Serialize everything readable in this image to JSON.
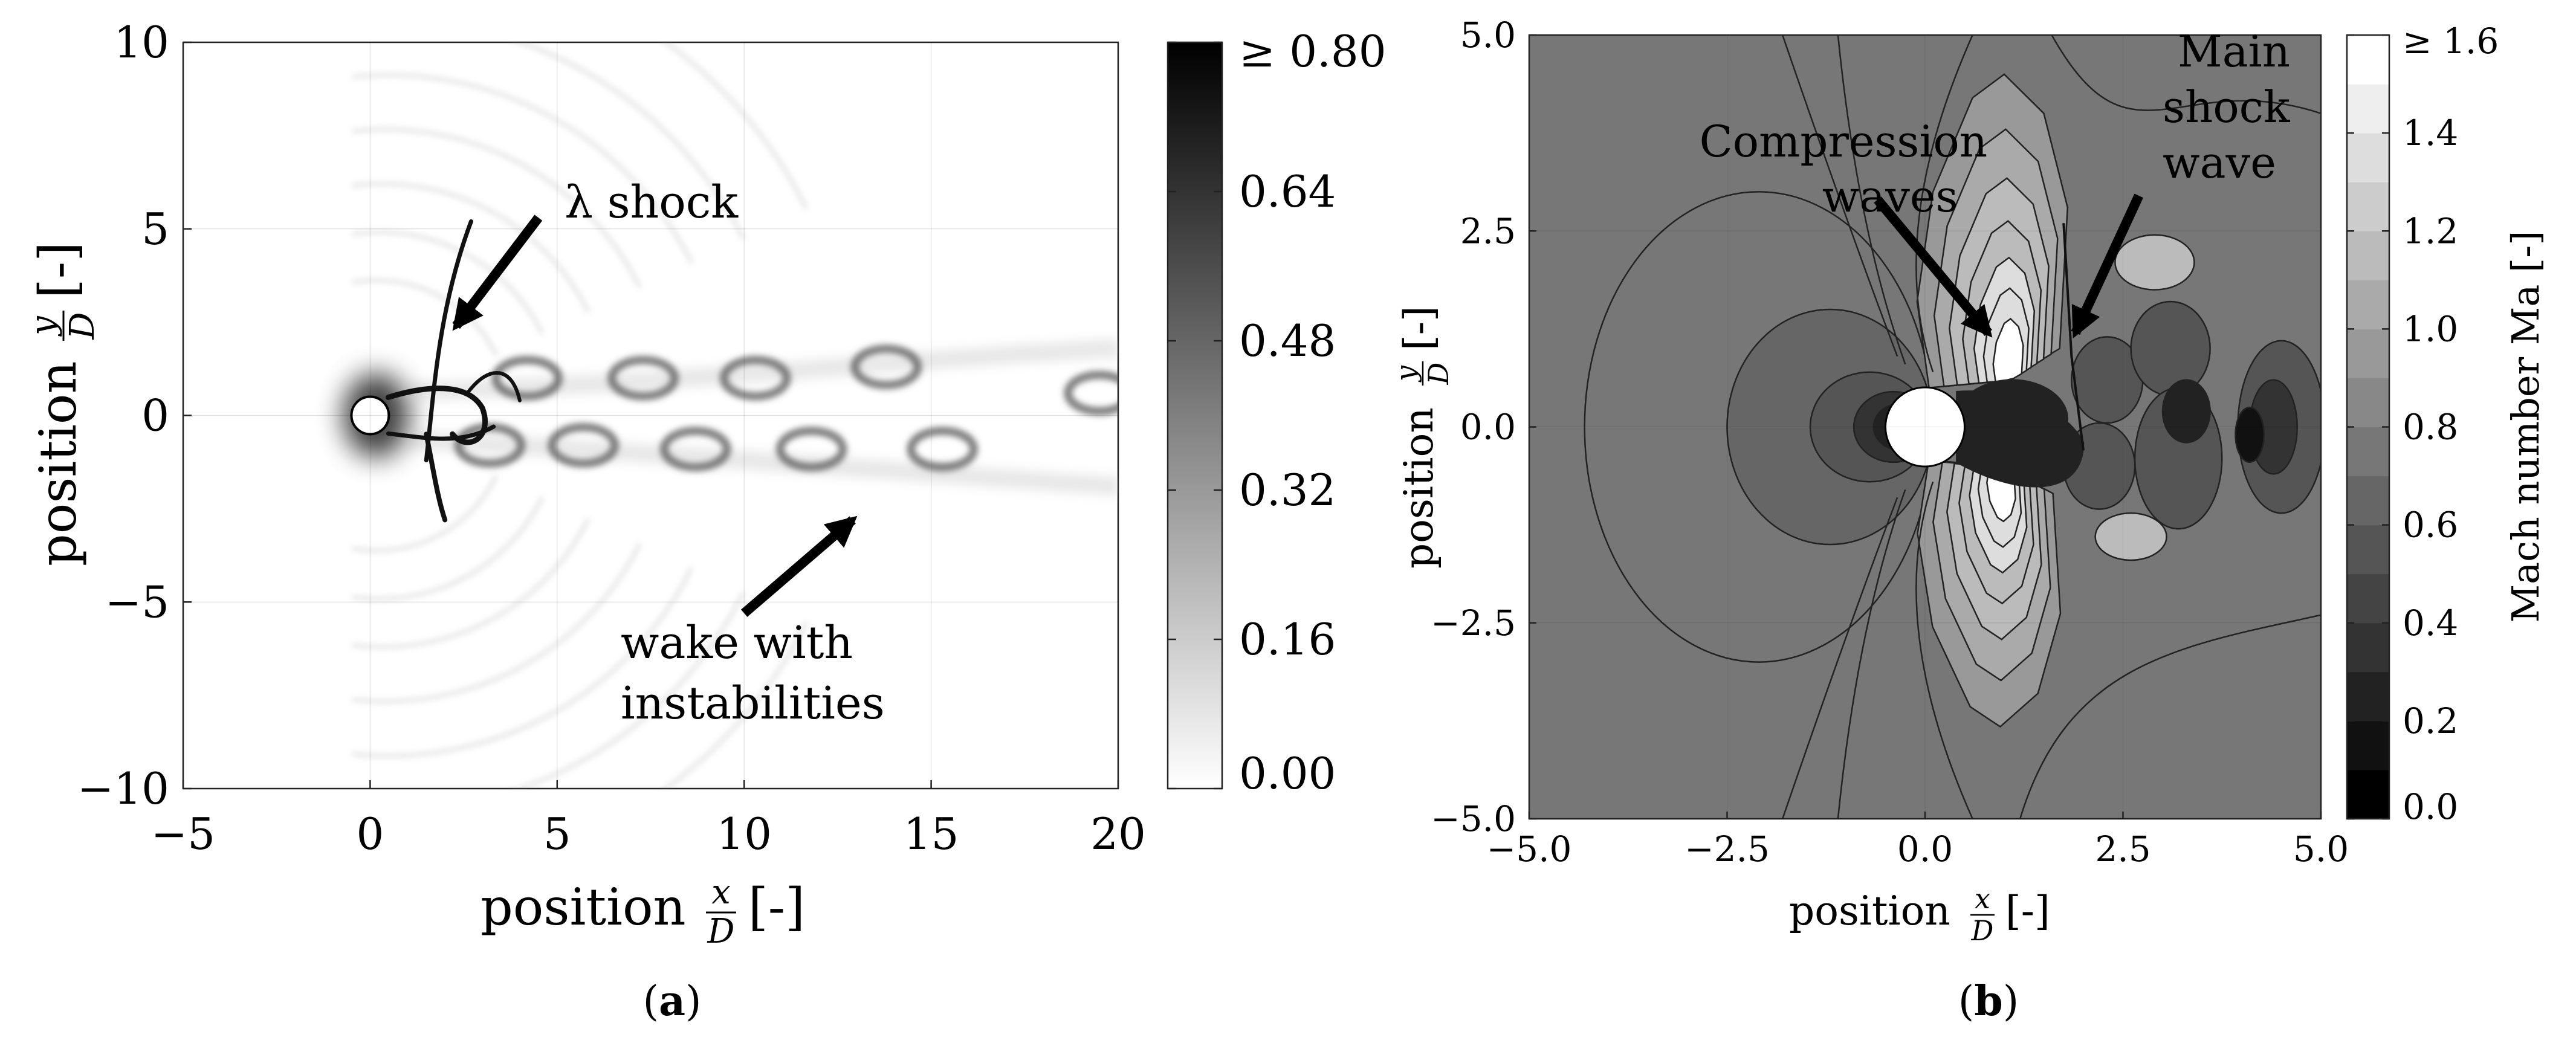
{
  "chart_data": [
    {
      "panel": "a",
      "type": "heatmap",
      "caption": "a",
      "xlabel": "position",
      "ylabel": "position",
      "xfrac": {
        "num": "x",
        "den": "D"
      },
      "yfrac": {
        "num": "y",
        "den": "D"
      },
      "unit": "[-]",
      "xlim": [
        -5,
        20
      ],
      "ylim": [
        -10,
        10
      ],
      "xticks": [
        -5,
        0,
        5,
        10,
        15,
        20
      ],
      "yticks": [
        -10,
        -5,
        0,
        5,
        10
      ],
      "xtick_labels": [
        "−5",
        "0",
        "5",
        "10",
        "15",
        "20"
      ],
      "ytick_labels": [
        "−10",
        "−5",
        "0",
        "5",
        "10"
      ],
      "colorbar": {
        "range": [
          0.0,
          0.8
        ],
        "ticks": [
          0.0,
          0.16,
          0.32,
          0.48,
          0.64,
          0.8
        ],
        "tick_labels": [
          "0.00",
          "0.16",
          "0.32",
          "0.48",
          "0.64",
          "≥ 0.80"
        ],
        "low_color": "#ffffff",
        "high_color": "#000000"
      },
      "cylinder": {
        "x": 0,
        "y": 0,
        "diameter": 1
      },
      "vortices": [
        {
          "x": 3.2,
          "y": -0.8
        },
        {
          "x": 4.2,
          "y": 1.0
        },
        {
          "x": 5.7,
          "y": -0.8
        },
        {
          "x": 7.3,
          "y": 1.0
        },
        {
          "x": 8.7,
          "y": -0.9
        },
        {
          "x": 10.3,
          "y": 1.0
        },
        {
          "x": 11.8,
          "y": -0.9
        },
        {
          "x": 13.8,
          "y": 1.3
        },
        {
          "x": 15.3,
          "y": -0.9
        },
        {
          "x": 19.5,
          "y": 0.6
        }
      ],
      "annotations": [
        {
          "text": "λ shock",
          "text_at": [
            5.2,
            5.3
          ],
          "arrow_from": [
            4.5,
            5.3
          ],
          "arrow_to": [
            2.3,
            2.4
          ]
        },
        {
          "text_lines": [
            "wake with",
            "instabilities"
          ],
          "text_at": [
            6.7,
            -6.5
          ],
          "arrow_from": [
            10.0,
            -5.3
          ],
          "arrow_to": [
            12.9,
            -2.8
          ]
        }
      ]
    },
    {
      "panel": "b",
      "type": "heatmap",
      "caption": "b",
      "xlabel": "position",
      "ylabel": "position",
      "xfrac": {
        "num": "x",
        "den": "D"
      },
      "yfrac": {
        "num": "y",
        "den": "D"
      },
      "unit": "[-]",
      "xlim": [
        -5.0,
        5.0
      ],
      "ylim": [
        -5.0,
        5.0
      ],
      "xticks": [
        -5.0,
        -2.5,
        0.0,
        2.5,
        5.0
      ],
      "yticks": [
        -5.0,
        -2.5,
        0.0,
        2.5,
        5.0
      ],
      "xtick_labels": [
        "−5.0",
        "−2.5",
        "0.0",
        "2.5",
        "5.0"
      ],
      "ytick_labels": [
        "−5.0",
        "−2.5",
        "0.0",
        "2.5",
        "5.0"
      ],
      "free_stream_mach": 0.8,
      "colorbar": {
        "label": "Mach number Ma [-]",
        "range": [
          0.0,
          1.6
        ],
        "levels": 16,
        "ticks": [
          0.0,
          0.2,
          0.4,
          0.6,
          0.8,
          1.0,
          1.2,
          1.4,
          1.6
        ],
        "tick_labels": [
          "0.0",
          "0.2",
          "0.4",
          "0.6",
          "0.8",
          "1.0",
          "1.2",
          "1.4",
          "≥ 1.6"
        ],
        "low_color": "#000000",
        "high_color": "#ffffff"
      },
      "cylinder": {
        "x": 0,
        "y": 0,
        "diameter": 1
      },
      "annotations": [
        {
          "text_lines": [
            "Compression",
            "waves"
          ],
          "text_at": [
            -0.9,
            3.05
          ],
          "arrow_from": [
            -0.6,
            2.9
          ],
          "arrow_to": [
            0.8,
            1.2
          ]
        },
        {
          "text_lines": [
            "Main",
            "shock",
            "wave"
          ],
          "text_at": [
            3.0,
            3.1
          ],
          "arrow_from": [
            2.7,
            2.95
          ],
          "arrow_to": [
            1.9,
            1.2
          ]
        }
      ]
    }
  ]
}
